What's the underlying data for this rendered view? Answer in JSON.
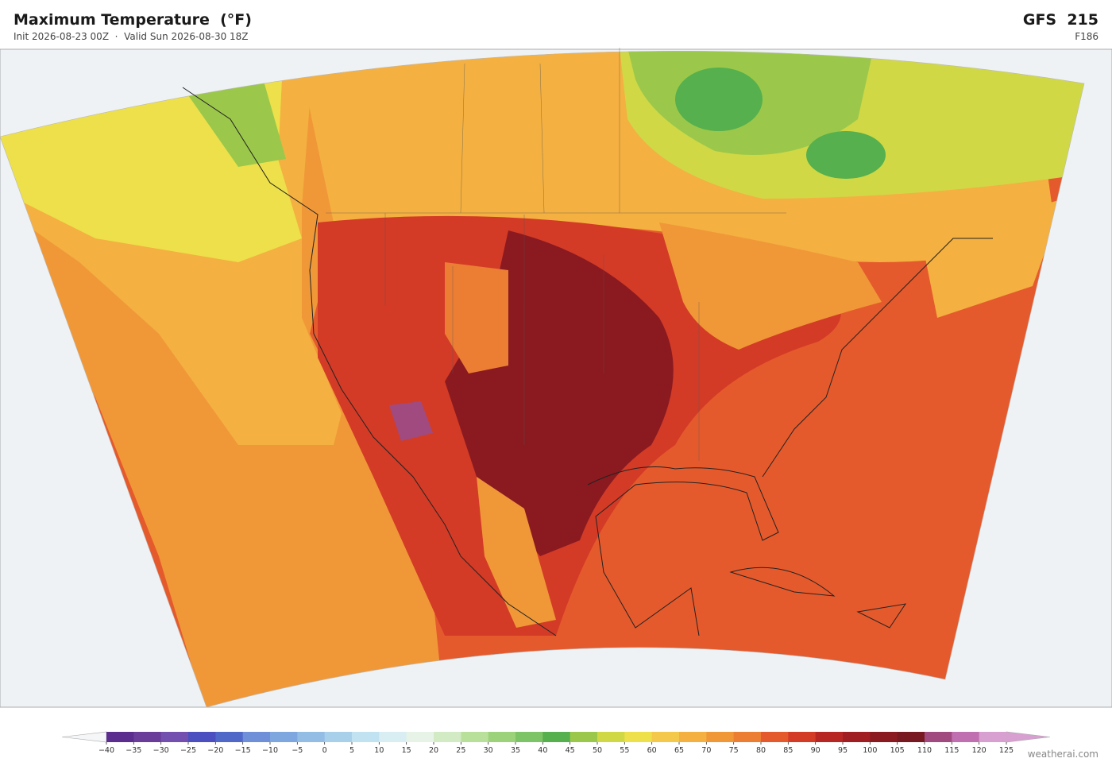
{
  "header": {
    "title": "Maximum Temperature  (°F)",
    "subtitle": "Init 2026-08-23 00Z  ·  Valid Sun 2026-08-30 18Z",
    "model": "GFS  215",
    "forecast_hour": "F186"
  },
  "colorbar": {
    "ticks": [
      {
        "value": -40,
        "label": "−40"
      },
      {
        "value": -35,
        "label": "−35"
      },
      {
        "value": -30,
        "label": "−30"
      },
      {
        "value": -25,
        "label": "−25"
      },
      {
        "value": -20,
        "label": "−20"
      },
      {
        "value": -15,
        "label": "−15"
      },
      {
        "value": -10,
        "label": "−10"
      },
      {
        "value": -5,
        "label": "−5"
      },
      0,
      5,
      10,
      15,
      20,
      25,
      30,
      35,
      40,
      45,
      50,
      55,
      60,
      65,
      70,
      75,
      80,
      85,
      90,
      95,
      100,
      105,
      110,
      115,
      120,
      125
    ],
    "colors": [
      "#5b2d8e",
      "#6a3d9a",
      "#7350b0",
      "#4b4fbf",
      "#5068c8",
      "#6f8fd8",
      "#7ea6df",
      "#94bde6",
      "#a8d0ea",
      "#c1e2f0",
      "#d9eef3",
      "#e6f3e6",
      "#d3ebc4",
      "#b9e09a",
      "#9bd27a",
      "#7dc466",
      "#55b04d",
      "#9bc84a",
      "#d0d846",
      "#ede04a",
      "#f4c84a",
      "#f4b040",
      "#f09838",
      "#ec7e34",
      "#e55a2c",
      "#d33b26",
      "#b82624",
      "#a01e22",
      "#8a1a20",
      "#781820",
      "#a04a80",
      "#c070b0",
      "#d8a0d0"
    ],
    "under_color": "#f4f6f8",
    "over_color": "#d8a0d0"
  },
  "footer": {
    "credit": "weatherai.com"
  }
}
